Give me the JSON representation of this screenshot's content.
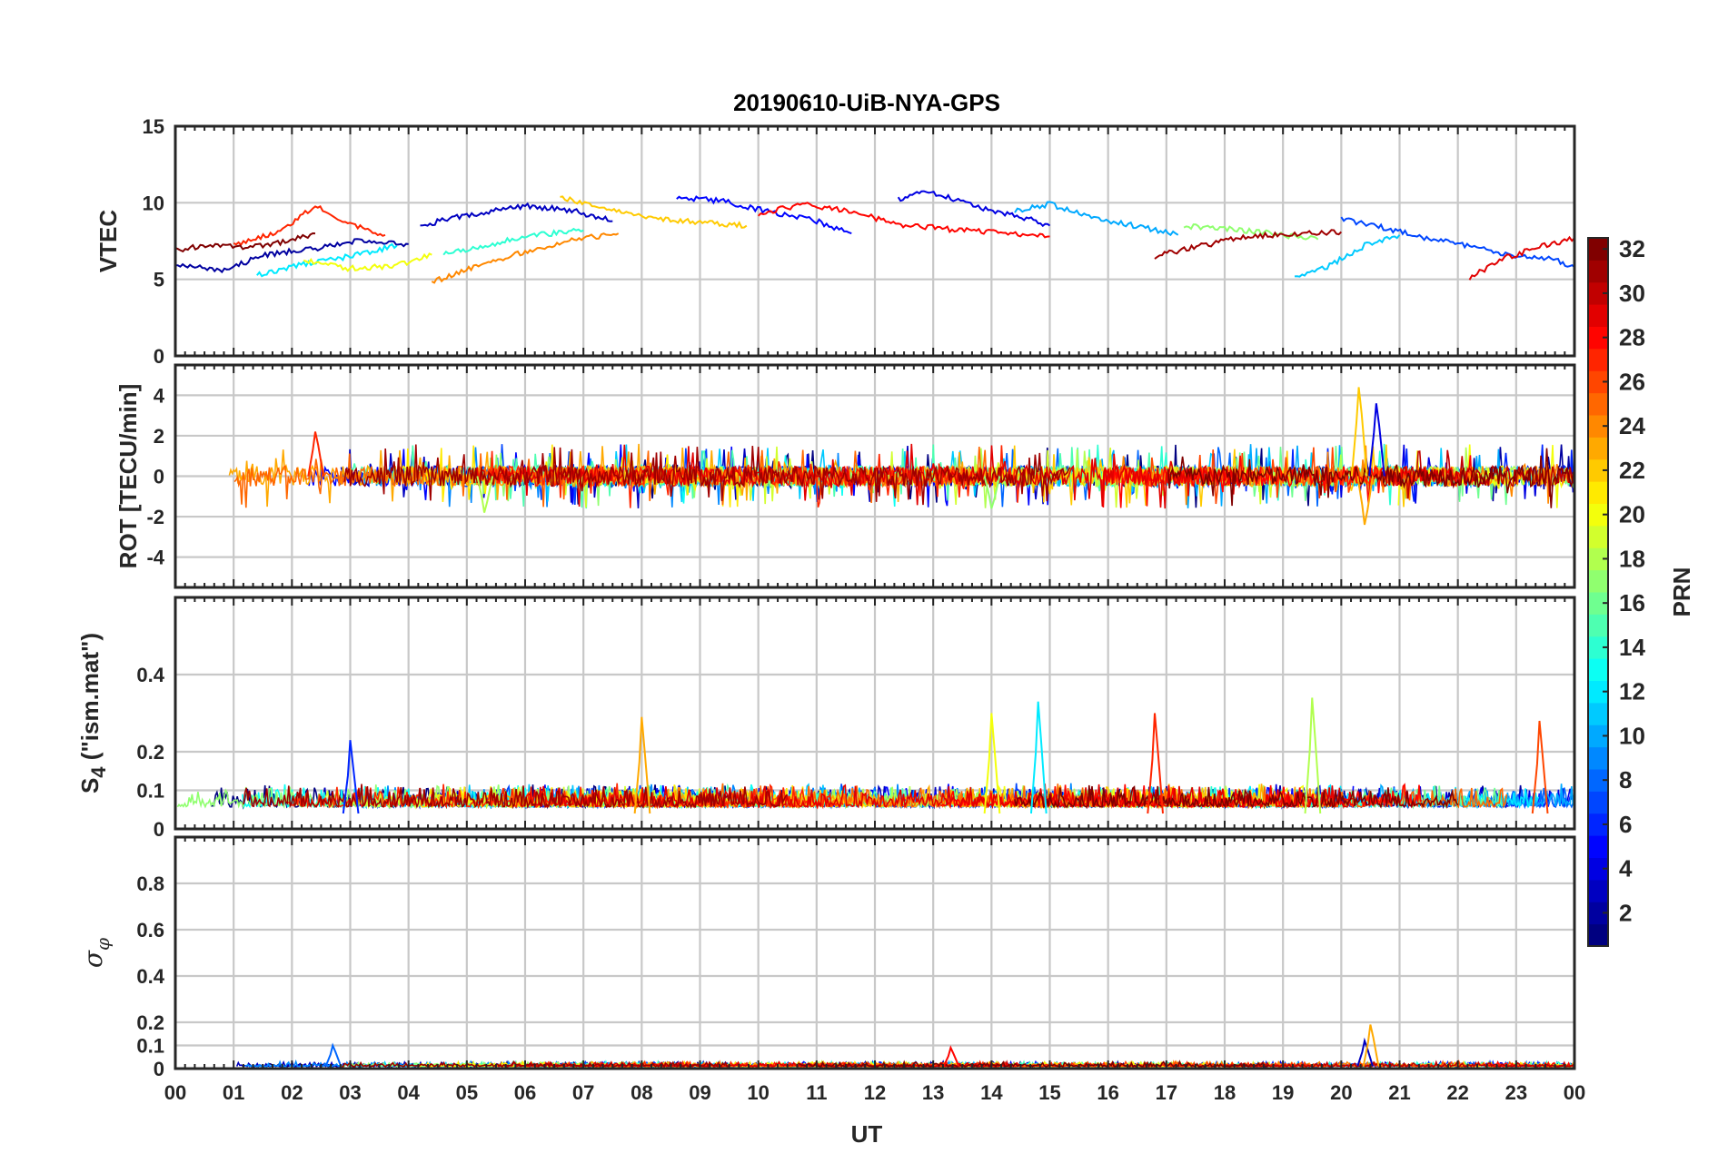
{
  "chart_data": {
    "type": "line",
    "title": "20190610-UiB-NYA-GPS",
    "xlabel": "UT",
    "x_unit": "hour of day (UT)",
    "xlim": [
      0,
      24
    ],
    "x_tick_labels": [
      "00",
      "01",
      "02",
      "03",
      "04",
      "05",
      "06",
      "07",
      "08",
      "09",
      "10",
      "11",
      "12",
      "13",
      "14",
      "15",
      "16",
      "17",
      "18",
      "19",
      "20",
      "21",
      "22",
      "23",
      "00"
    ],
    "grid": true,
    "colorbar": {
      "label": "PRN",
      "range": [
        1,
        32
      ],
      "tick_labels": [
        "2",
        "4",
        "6",
        "8",
        "10",
        "12",
        "14",
        "16",
        "18",
        "20",
        "22",
        "24",
        "26",
        "28",
        "30",
        "32"
      ],
      "colormap": "jet"
    },
    "panels": [
      {
        "ylabel": "VTEC",
        "ylim": [
          0,
          15
        ],
        "y_tick_labels": [
          "0",
          "5",
          "10",
          "15"
        ],
        "typical_range": [
          5,
          11
        ],
        "traces": [
          {
            "prn": 2,
            "x": [
              0.0,
              0.8,
              1.5,
              2.4,
              3.2,
              4.0
            ],
            "y": [
              6.0,
              5.5,
              6.6,
              7.0,
              7.6,
              7.3
            ]
          },
          {
            "prn": 3,
            "x": [
              4.2,
              5.0,
              6.0,
              6.8,
              7.5
            ],
            "y": [
              8.5,
              9.2,
              9.8,
              9.5,
              8.8
            ]
          },
          {
            "prn": 5,
            "x": [
              8.6,
              9.4,
              10.2,
              11.0,
              11.6
            ],
            "y": [
              10.4,
              10.1,
              9.4,
              8.8,
              8.0
            ]
          },
          {
            "prn": 4,
            "x": [
              12.4,
              12.8,
              13.3,
              13.9,
              14.6,
              15.0
            ],
            "y": [
              10.2,
              10.8,
              10.3,
              9.6,
              9.0,
              8.5
            ]
          },
          {
            "prn": 10,
            "x": [
              14.4,
              15.0,
              15.8,
              16.6,
              17.2
            ],
            "y": [
              9.5,
              9.9,
              9.0,
              8.4,
              7.9
            ]
          },
          {
            "prn": 7,
            "x": [
              20.0,
              20.6,
              21.3,
              22.2,
              22.9,
              23.6,
              24.0
            ],
            "y": [
              8.9,
              8.5,
              7.8,
              7.2,
              6.5,
              6.4,
              5.8
            ]
          },
          {
            "prn": 12,
            "x": [
              1.4,
              2.2,
              3.0,
              3.8
            ],
            "y": [
              5.3,
              6.0,
              6.5,
              7.2
            ]
          },
          {
            "prn": 14,
            "x": [
              4.6,
              5.4,
              6.2,
              7.0
            ],
            "y": [
              6.6,
              7.3,
              7.9,
              8.2
            ]
          },
          {
            "prn": 17,
            "x": [
              17.3,
              18.0,
              18.8,
              19.6
            ],
            "y": [
              8.5,
              8.3,
              8.0,
              7.6
            ]
          },
          {
            "prn": 11,
            "x": [
              19.2,
              19.8,
              20.4,
              21.0
            ],
            "y": [
              5.1,
              5.9,
              7.2,
              7.9
            ]
          },
          {
            "prn": 20,
            "x": [
              2.2,
              3.0,
              3.8,
              4.4
            ],
            "y": [
              6.2,
              5.7,
              5.9,
              6.6
            ]
          },
          {
            "prn": 22,
            "x": [
              6.6,
              7.4,
              8.2,
              9.0,
              9.8
            ],
            "y": [
              10.4,
              9.6,
              9.0,
              8.7,
              8.5
            ]
          },
          {
            "prn": 24,
            "x": [
              4.4,
              5.2,
              6.0,
              6.8,
              7.6
            ],
            "y": [
              4.8,
              5.9,
              6.8,
              7.6,
              8.0
            ]
          },
          {
            "prn": 27,
            "x": [
              1.0,
              1.8,
              2.4,
              3.0,
              3.6
            ],
            "y": [
              7.3,
              8.1,
              9.8,
              8.6,
              7.9
            ]
          },
          {
            "prn": 28,
            "x": [
              10.0,
              10.8,
              11.6,
              12.4,
              13.2,
              14.2,
              15.0
            ],
            "y": [
              9.3,
              9.9,
              9.4,
              8.6,
              8.3,
              8.0,
              7.8
            ]
          },
          {
            "prn": 29,
            "x": [
              22.2,
              22.8,
              23.4,
              24.0
            ],
            "y": [
              5.1,
              6.4,
              7.1,
              7.7
            ]
          },
          {
            "prn": 31,
            "x": [
              16.8,
              17.6,
              18.4,
              19.2,
              20.0
            ],
            "y": [
              6.5,
              7.2,
              7.8,
              8.0,
              8.1
            ]
          },
          {
            "prn": 32,
            "x": [
              0.0,
              0.6,
              1.2,
              1.8,
              2.4
            ],
            "y": [
              6.9,
              7.3,
              7.0,
              7.4,
              8.0
            ]
          }
        ]
      },
      {
        "ylabel": "ROT [TECU/min]",
        "ylim": [
          -5.5,
          5.5
        ],
        "y_tick_labels": [
          "-4",
          "-2",
          "0",
          "2",
          "4"
        ],
        "typical_range": [
          -1,
          1
        ],
        "extrema": [
          {
            "x": 2.4,
            "y": 2.2,
            "prn": 27
          },
          {
            "x": 20.3,
            "y": 4.4,
            "prn": 22
          },
          {
            "x": 20.6,
            "y": 3.6,
            "prn": 4
          },
          {
            "x": 20.4,
            "y": -2.4,
            "prn": 23
          },
          {
            "x": 14.0,
            "y": -1.6,
            "prn": 17
          },
          {
            "x": 5.3,
            "y": -1.8,
            "prn": 18
          }
        ]
      },
      {
        "ylabel": "S4 (\"ism.mat\")",
        "ylabel_main": "S",
        "ylabel_sub": "4",
        "ylabel_suffix": " (\"ism.mat\")",
        "ylim": [
          0,
          0.6
        ],
        "y_tick_labels": [
          "0",
          "0.1",
          "0.2",
          "0.4"
        ],
        "typical_range": [
          0.03,
          0.12
        ],
        "extrema": [
          {
            "x": 3.0,
            "y": 0.23,
            "prn": 6
          },
          {
            "x": 8.0,
            "y": 0.29,
            "prn": 23
          },
          {
            "x": 14.0,
            "y": 0.3,
            "prn": 20
          },
          {
            "x": 14.8,
            "y": 0.33,
            "prn": 12
          },
          {
            "x": 16.8,
            "y": 0.3,
            "prn": 27
          },
          {
            "x": 19.5,
            "y": 0.34,
            "prn": 18
          },
          {
            "x": 23.4,
            "y": 0.28,
            "prn": 26
          }
        ]
      },
      {
        "ylabel": "σφ",
        "ylabel_main": "σ",
        "ylabel_sub": "φ",
        "ylim": [
          0,
          1
        ],
        "y_tick_labels": [
          "0",
          "0.1",
          "0.2",
          "0.4",
          "0.6",
          "0.8"
        ],
        "typical_range": [
          0.0,
          0.03
        ],
        "extrema": [
          {
            "x": 2.7,
            "y": 0.1,
            "prn": 8
          },
          {
            "x": 20.4,
            "y": 0.12,
            "prn": 3
          },
          {
            "x": 20.5,
            "y": 0.19,
            "prn": 23
          },
          {
            "x": 13.3,
            "y": 0.09,
            "prn": 28
          }
        ]
      }
    ]
  }
}
